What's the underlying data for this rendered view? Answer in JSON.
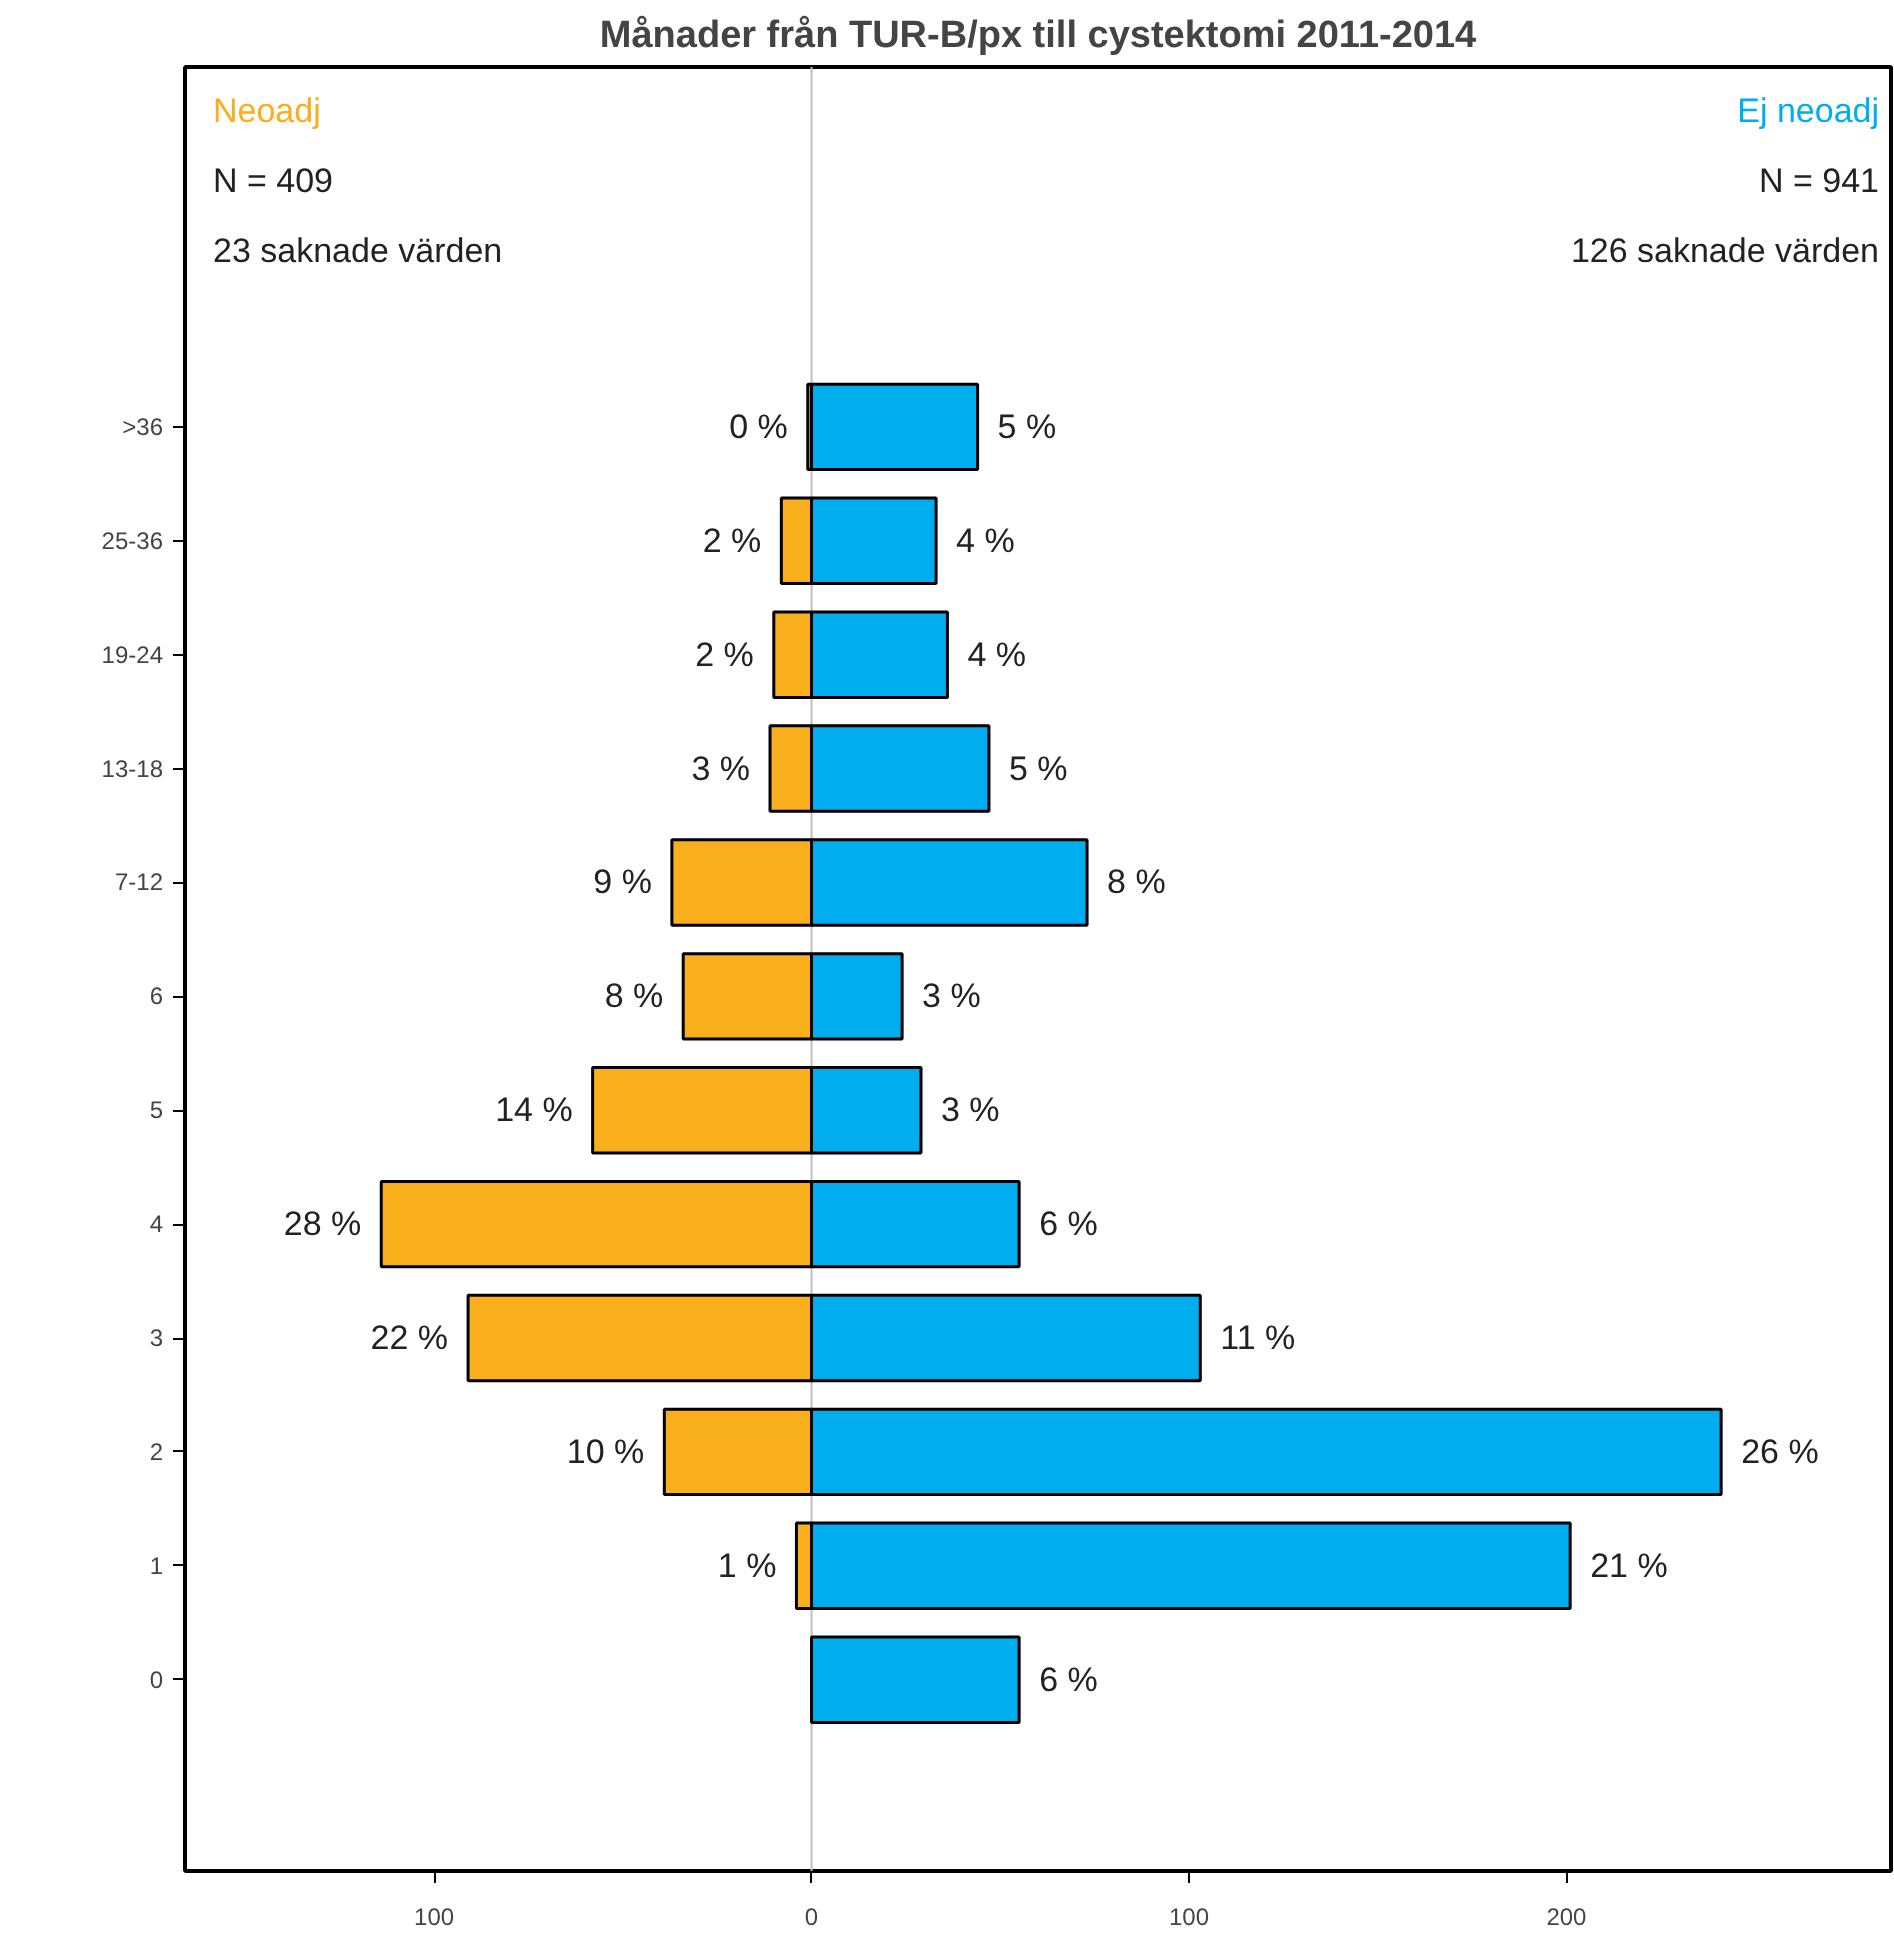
{
  "chart_data": {
    "type": "bar",
    "orientation": "horizontal",
    "stacked": true,
    "title": "Månader från TUR-B/px till cystektomi 2011-2014",
    "categories": [
      ">36",
      "25-36",
      "19-24",
      "13-18",
      "7-12",
      "6",
      "5",
      "4",
      "3",
      "2",
      "1",
      "0"
    ],
    "series": [
      {
        "name": "Neoadj",
        "color": "#f9ae1b",
        "values": [
          -1,
          -8,
          -10,
          -11,
          -37,
          -34,
          -58,
          -114,
          -91,
          -39,
          -4,
          null
        ]
      },
      {
        "name": "Ej neoadj",
        "color": "#00aeef",
        "values": [
          44,
          33,
          36,
          47,
          73,
          24,
          29,
          55,
          103,
          241,
          201,
          55
        ]
      }
    ],
    "annotations": [
      "N = 409",
      "23 saknade värden",
      "N = 941",
      "126 saknade värden",
      {
        "text": "0 %",
        "x": -1,
        "y": ">36"
      },
      {
        "text": "2 %",
        "x": -8,
        "y": "25-36"
      },
      {
        "text": "2 %",
        "x": -10,
        "y": "19-24"
      },
      {
        "text": "3 %",
        "x": -11,
        "y": "13-18"
      },
      {
        "text": "9 %",
        "x": -37,
        "y": "7-12"
      },
      {
        "text": "8 %",
        "x": -34,
        "y": "6"
      },
      {
        "text": "14 %",
        "x": -58,
        "y": "5"
      },
      {
        "text": "28 %",
        "x": -114,
        "y": "4"
      },
      {
        "text": "22 %",
        "x": -91,
        "y": "3"
      },
      {
        "text": "10 %",
        "x": -39,
        "y": "2"
      },
      {
        "text": "1 %",
        "x": -4,
        "y": "1"
      },
      {
        "text": "5 %",
        "x": 44,
        "y": ">36"
      },
      {
        "text": "4 %",
        "x": 33,
        "y": "25-36"
      },
      {
        "text": "4 %",
        "x": 36,
        "y": "19-24"
      },
      {
        "text": "5 %",
        "x": 47,
        "y": "13-18"
      },
      {
        "text": "8 %",
        "x": 73,
        "y": "7-12"
      },
      {
        "text": "3 %",
        "x": 24,
        "y": "6"
      },
      {
        "text": "3 %",
        "x": 29,
        "y": "5"
      },
      {
        "text": "6 %",
        "x": 55,
        "y": "4"
      },
      {
        "text": "11 %",
        "x": 103,
        "y": "3"
      },
      {
        "text": "26 %",
        "x": 241,
        "y": "2"
      },
      {
        "text": "21 %",
        "x": 201,
        "y": "1"
      },
      {
        "text": "6 %",
        "x": 55,
        "y": "0"
      }
    ],
    "xlim": [
      -166,
      286
    ],
    "xticks": [
      {
        "value": -100,
        "label": "100"
      },
      0,
      100,
      200
    ],
    "ref_lines": [
      {
        "axis": "x",
        "value": 0,
        "color": "#bebebe"
      }
    ],
    "grid": false
  }
}
